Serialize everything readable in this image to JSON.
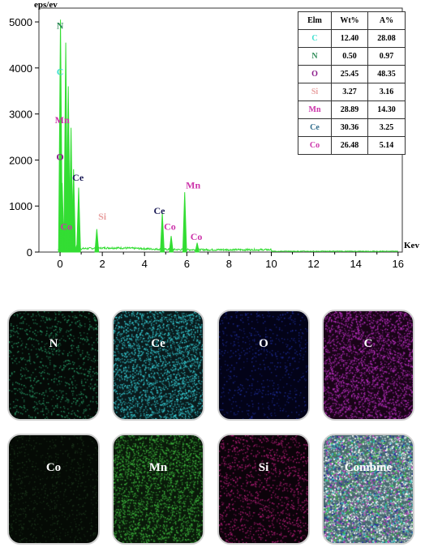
{
  "chart_data": {
    "type": "line",
    "ylabel": "eps/ev",
    "xlabel": "Kev",
    "xlim": [
      -1,
      16.2
    ],
    "ylim": [
      0,
      5300
    ],
    "x_ticks": [
      0,
      2,
      4,
      6,
      8,
      10,
      12,
      14,
      16
    ],
    "y_ticks": [
      0,
      1000,
      2000,
      3000,
      4000,
      5000
    ],
    "series_color": "#33dd33",
    "grid": false,
    "peaks": [
      {
        "x": 0.02,
        "y": 5050
      },
      {
        "x": 0.1,
        "y": 1500
      },
      {
        "x": 0.27,
        "y": 4550
      },
      {
        "x": 0.39,
        "y": 3600
      },
      {
        "x": 0.52,
        "y": 2700
      },
      {
        "x": 0.64,
        "y": 1800
      },
      {
        "x": 0.78,
        "y": 130
      },
      {
        "x": 0.88,
        "y": 1400
      },
      {
        "x": 1.74,
        "y": 500
      },
      {
        "x": 4.84,
        "y": 850
      },
      {
        "x": 5.26,
        "y": 350
      },
      {
        "x": 5.9,
        "y": 1300
      },
      {
        "x": 6.49,
        "y": 200
      }
    ],
    "annotations": [
      {
        "text": "N",
        "x": 0.0,
        "y": 4850,
        "color": "#2e8b57"
      },
      {
        "text": "C",
        "x": 0.0,
        "y": 3850,
        "color": "#40e0d0"
      },
      {
        "text": "Mn",
        "x": 0.1,
        "y": 2800,
        "color": "#cc33aa"
      },
      {
        "text": "O",
        "x": 0.0,
        "y": 2000,
        "color": "#8b1a8b"
      },
      {
        "text": "Ce",
        "x": 0.85,
        "y": 1550,
        "color": "#1a1a55"
      },
      {
        "text": "Si",
        "x": 2.0,
        "y": 700,
        "color": "#e8a0a0"
      },
      {
        "text": "Co",
        "x": 0.3,
        "y": 480,
        "color": "#cc33aa"
      },
      {
        "text": "Ce",
        "x": 4.7,
        "y": 830,
        "color": "#1a1a55"
      },
      {
        "text": "Mn",
        "x": 6.3,
        "y": 1380,
        "color": "#cc33aa"
      },
      {
        "text": "Co",
        "x": 5.2,
        "y": 480,
        "color": "#cc33aa"
      },
      {
        "text": "Co",
        "x": 6.45,
        "y": 260,
        "color": "#cc33aa"
      }
    ]
  },
  "table": {
    "headers": [
      "Elm",
      "Wt%",
      "A%"
    ],
    "rows": [
      {
        "elm": "C",
        "wt": "12.40",
        "a": "28.08",
        "color": "#40e0d0"
      },
      {
        "elm": "N",
        "wt": "0.50",
        "a": "0.97",
        "color": "#2e8b57"
      },
      {
        "elm": "O",
        "wt": "25.45",
        "a": "48.35",
        "color": "#8b1a8b"
      },
      {
        "elm": "Si",
        "wt": "3.27",
        "a": "3.16",
        "color": "#e8a0a0"
      },
      {
        "elm": "Mn",
        "wt": "28.89",
        "a": "14.30",
        "color": "#cc33aa"
      },
      {
        "elm": "Ce",
        "wt": "30.36",
        "a": "3.25",
        "color": "#2e6b8b"
      },
      {
        "elm": "Co",
        "wt": "26.48",
        "a": "5.14",
        "color": "#cc33aa"
      }
    ]
  },
  "maps": [
    {
      "label": "N",
      "bg": "#050a07",
      "dot": "#2aa06a",
      "density": 0.35
    },
    {
      "label": "Ce",
      "bg": "#0a1a1c",
      "dot": "#38d8e0",
      "density": 0.85
    },
    {
      "label": "O",
      "bg": "#030318",
      "dot": "#2030a0",
      "density": 0.25
    },
    {
      "label": "C",
      "bg": "#1a0418",
      "dot": "#c030c8",
      "density": 0.85
    },
    {
      "label": "Co",
      "bg": "#050a05",
      "dot": "#1e3a1e",
      "density": 0.3
    },
    {
      "label": "Mn",
      "bg": "#0a1a0a",
      "dot": "#40c040",
      "density": 0.85
    },
    {
      "label": "Si",
      "bg": "#0c030a",
      "dot": "#c02080",
      "density": 0.45
    },
    {
      "label": "Combine",
      "bg": "#4a6a70",
      "dot": "#e0f0f0",
      "density": 0.9
    }
  ]
}
